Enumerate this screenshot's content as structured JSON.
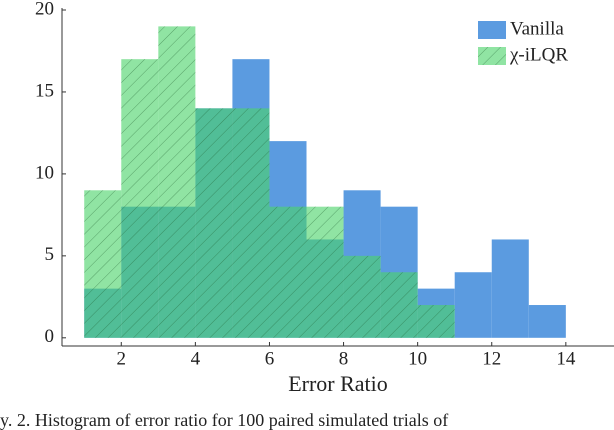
{
  "chart_data": {
    "type": "histogram",
    "xlabel": "Error Ratio",
    "caption": "y. 2.    Histogram of error ratio for 100 paired simulated trials of",
    "bins": [
      1,
      2,
      3,
      4,
      5,
      6,
      7,
      8,
      9,
      10,
      11,
      12,
      13,
      14
    ],
    "series": [
      {
        "name": "Vanilla",
        "color": "#5b9be0",
        "values": [
          3,
          8,
          8,
          14,
          17,
          12,
          6,
          9,
          8,
          3,
          4,
          6,
          2
        ]
      },
      {
        "name": "χ-iLQR",
        "color": "#4cd46a",
        "hatch": true,
        "values": [
          9,
          17,
          19,
          14,
          14,
          8,
          8,
          5,
          4,
          2,
          0,
          0,
          0
        ]
      }
    ],
    "xlim": [
      0.4,
      15.3
    ],
    "ylim": [
      -0.5,
      20
    ],
    "xticks": [
      2,
      4,
      6,
      8,
      10,
      12,
      14
    ],
    "yticks": [
      0,
      5,
      10,
      15,
      20
    ],
    "legend": "upper right"
  }
}
